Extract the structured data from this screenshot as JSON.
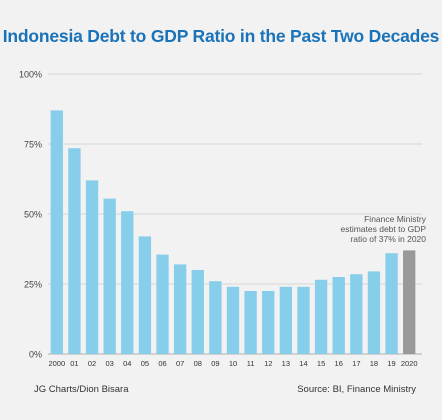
{
  "chart_data": {
    "type": "bar",
    "title": "Indonesia Debt to GDP Ratio in the Past Two Decades",
    "categories": [
      "2000",
      "01",
      "02",
      "03",
      "04",
      "05",
      "06",
      "07",
      "08",
      "09",
      "10",
      "11",
      "12",
      "13",
      "14",
      "15",
      "16",
      "17",
      "18",
      "19",
      "2020"
    ],
    "values": [
      87,
      73.5,
      62,
      55.5,
      51,
      42,
      35.5,
      32,
      30,
      26,
      24,
      22.5,
      22.5,
      24,
      24,
      26.5,
      27.5,
      28.5,
      29.5,
      36,
      37
    ],
    "highlight_index": 20,
    "ylim": [
      0,
      100
    ],
    "yticks": [
      "0%",
      "25%",
      "50%",
      "75%",
      "100%"
    ],
    "ytick_values": [
      0,
      25,
      50,
      75,
      100
    ],
    "annotation": [
      "Finance Ministry",
      "estimates debt to GDP",
      "ratio of 37% in 2020"
    ],
    "grid": true
  },
  "colors": {
    "bar": "#87ceeb",
    "highlight_bar": "#999999",
    "title": "#1a72b8",
    "background": "#f2f2f2"
  },
  "footer": {
    "credit": "JG Charts/Dion Bisara",
    "source": "Source: BI, Finance Ministry"
  }
}
